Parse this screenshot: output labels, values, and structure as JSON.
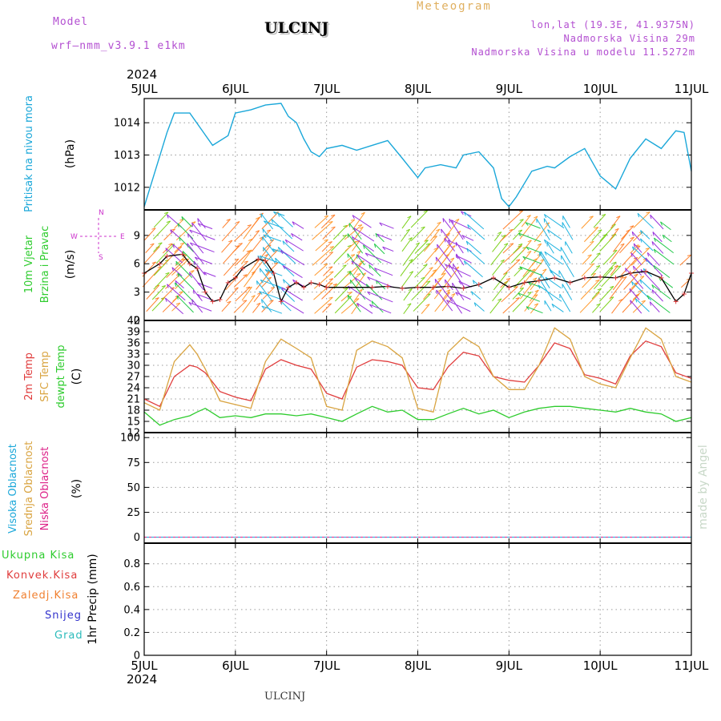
{
  "header": {
    "model_label": "Model",
    "model_name": "wrf—nmm_v3.9.1  e1km",
    "station": "ULCINJ",
    "subtitle": "Meteogram",
    "lonlat": "lon,lat (19.3E, 41.9375N)",
    "elevation": "Nadmorska Visina 29m",
    "model_elevation": "Nadmorska Visina u modelu 11.5272m",
    "footer_station": "ULCINJ",
    "watermark": "made by Angel"
  },
  "colors": {
    "pressure": "#1aa7d9",
    "temp2m": "#e03c3c",
    "sfc_temp": "#d9a441",
    "dewpt": "#2ecc2e",
    "wind_black": "#000000",
    "wind_red": "#e03c3c",
    "magenta": "#cc33cc",
    "header_purple": "#b34fd1",
    "header_orange": "#e0b060",
    "cloud_high": "#1aa7d9",
    "cloud_mid": "#d9a441",
    "cloud_low": "#dd2288",
    "precip_total": "#2ecc2e",
    "precip_conv": "#e03c3c",
    "precip_frozen": "#f08030",
    "precip_snow": "#3333cc",
    "precip_graupel": "#2bbbbb"
  },
  "chart_data": [
    {
      "type": "line",
      "panel": "pressure",
      "year_label": "2024",
      "x_ticks": [
        "5JUL",
        "6JUL",
        "7JUL",
        "8JUL",
        "9JUL",
        "10JUL",
        "11JUL"
      ],
      "ylabel_name": "Pritisak na nivou mora",
      "ylabel_unit": "(hPa)",
      "yticks": [
        1012,
        1013,
        1014
      ],
      "ylim": [
        1011.3,
        1014.75
      ],
      "x": [
        0,
        0.25,
        0.33,
        0.5,
        0.75,
        0.92,
        1.0,
        1.17,
        1.33,
        1.5,
        1.58,
        1.67,
        1.75,
        1.83,
        1.92,
        2.0,
        2.17,
        2.33,
        2.5,
        2.67,
        2.83,
        3.0,
        3.08,
        3.25,
        3.42,
        3.5,
        3.67,
        3.83,
        3.92,
        4.0,
        4.08,
        4.25,
        4.42,
        4.5,
        4.67,
        4.83,
        5.0,
        5.17,
        5.33,
        5.5,
        5.67,
        5.83,
        5.92,
        6.0
      ],
      "y": [
        1011.4,
        1013.7,
        1014.3,
        1014.3,
        1013.3,
        1013.6,
        1014.3,
        1014.4,
        1014.55,
        1014.6,
        1014.2,
        1014.0,
        1013.5,
        1013.1,
        1012.95,
        1013.2,
        1013.3,
        1013.15,
        1013.3,
        1013.45,
        1012.9,
        1012.3,
        1012.6,
        1012.7,
        1012.6,
        1013.0,
        1013.1,
        1012.6,
        1011.65,
        1011.4,
        1011.7,
        1012.5,
        1012.65,
        1012.6,
        1012.95,
        1013.2,
        1012.35,
        1011.95,
        1012.9,
        1013.5,
        1013.2,
        1013.75,
        1013.7,
        1012.5
      ]
    },
    {
      "type": "line",
      "panel": "wind",
      "ylabel_name1": "10m Vjetar",
      "ylabel_name2": "Brzina i Pravac",
      "ylabel_unit": "(m/s)",
      "compass_n": "N",
      "compass_s": "S",
      "compass_w": "W",
      "compass_e": "E",
      "yticks": [
        0,
        3,
        6,
        9
      ],
      "ylim": [
        0,
        11.7
      ],
      "x": [
        0,
        0.17,
        0.25,
        0.42,
        0.5,
        0.58,
        0.67,
        0.75,
        0.83,
        0.92,
        1.0,
        1.08,
        1.25,
        1.33,
        1.42,
        1.5,
        1.58,
        1.67,
        1.75,
        1.83,
        1.92,
        2.0,
        2.5,
        2.67,
        2.83,
        3.0,
        3.17,
        3.33,
        3.5,
        3.67,
        3.83,
        4.0,
        4.17,
        4.33,
        4.5,
        4.67,
        4.83,
        5.0,
        5.17,
        5.33,
        5.5,
        5.67,
        5.83,
        5.92,
        6.0
      ],
      "speed": [
        5,
        6,
        6.8,
        7,
        6,
        5.5,
        3,
        2,
        2.2,
        4,
        4.5,
        5.5,
        6.5,
        6.3,
        5,
        2,
        3.5,
        4,
        3.5,
        4,
        3.8,
        3.5,
        3.5,
        3.6,
        3.4,
        3.5,
        3.5,
        3.6,
        3.4,
        3.8,
        4.5,
        3.5,
        4,
        4.2,
        4.5,
        4,
        4.5,
        4.6,
        4.5,
        5,
        5.2,
        4.5,
        2,
        2.8,
        5
      ]
    },
    {
      "type": "line",
      "panel": "temperature",
      "ylabel_temp": "2m Temp",
      "ylabel_sfc": "SFC Temp",
      "ylabel_dewpt": "dewpt Temp",
      "ylabel_unit": "(C)",
      "yticks": [
        12,
        15,
        18,
        21,
        24,
        27,
        30,
        33,
        36,
        39,
        42
      ],
      "ylim": [
        12,
        42
      ],
      "x": [
        0,
        0.17,
        0.33,
        0.5,
        0.58,
        0.67,
        0.83,
        1.0,
        1.17,
        1.33,
        1.5,
        1.67,
        1.83,
        2.0,
        2.17,
        2.33,
        2.5,
        2.67,
        2.83,
        3.0,
        3.17,
        3.33,
        3.5,
        3.67,
        3.83,
        4.0,
        4.17,
        4.33,
        4.5,
        4.67,
        4.83,
        5.0,
        5.17,
        5.33,
        5.5,
        5.67,
        5.83,
        6.0
      ],
      "series": [
        {
          "name": "2m Temp",
          "values": [
            21,
            19,
            27,
            30,
            29.5,
            28,
            23,
            21.5,
            20.5,
            29,
            31.5,
            30,
            29,
            22.5,
            21,
            29.5,
            31.5,
            31,
            30,
            24,
            23.5,
            29.5,
            33.5,
            32.5,
            27,
            26,
            25.5,
            30,
            36,
            34.5,
            27.5,
            26.5,
            25,
            32.5,
            36.5,
            35,
            28,
            26.5
          ]
        },
        {
          "name": "SFC Temp",
          "values": [
            20,
            18,
            31,
            35.5,
            33,
            29,
            20.5,
            19.5,
            18.5,
            31,
            37,
            34.5,
            32,
            19,
            18,
            34,
            36.5,
            35,
            32,
            18.5,
            17.5,
            33.5,
            37.5,
            35,
            27,
            23.5,
            23.5,
            30,
            40,
            37,
            27,
            25,
            24,
            32,
            40,
            37,
            27,
            25.5
          ]
        },
        {
          "name": "dewpt Temp",
          "values": [
            17.5,
            14,
            15.5,
            16.5,
            17.5,
            18.5,
            16,
            16.5,
            16,
            17,
            17,
            16.5,
            17,
            16,
            15,
            17,
            19,
            17.5,
            18,
            15.5,
            15.5,
            17,
            18.5,
            17,
            18,
            16,
            17.5,
            18.5,
            19,
            19,
            18.5,
            18,
            17.5,
            18.5,
            17.5,
            17,
            15,
            16
          ]
        }
      ]
    },
    {
      "type": "line",
      "panel": "clouds",
      "ylabel_high": "Visoka Oblacnost",
      "ylabel_mid": "Srednja Oblacnost",
      "ylabel_low": "Niska Oblacnost",
      "ylabel_unit": "(%)",
      "yticks": [
        0,
        25,
        50,
        75,
        100
      ],
      "ylim": [
        -6,
        105
      ],
      "series": [
        {
          "name": "Visoka Oblacnost",
          "values": [
            0,
            0,
            0,
            0,
            0,
            0,
            0
          ]
        },
        {
          "name": "Srednja Oblacnost",
          "values": [
            0,
            0,
            0,
            0,
            0,
            0,
            0
          ]
        },
        {
          "name": "Niska Oblacnost",
          "values": [
            0,
            0,
            0,
            0,
            0,
            0,
            0
          ]
        }
      ]
    },
    {
      "type": "line",
      "panel": "precip",
      "ylabel_unit": "1hr Precip (mm)",
      "yticks": [
        0,
        0.2,
        0.4,
        0.6,
        0.8
      ],
      "ylim": [
        0,
        0.98
      ],
      "year_label": "2024",
      "legend": [
        "Ukupna Kisa",
        "Konvek.Kisa",
        "Zaledj.Kisa",
        "Snijeg",
        "Grad"
      ],
      "values": [
        0,
        0,
        0,
        0,
        0,
        0,
        0
      ]
    }
  ]
}
